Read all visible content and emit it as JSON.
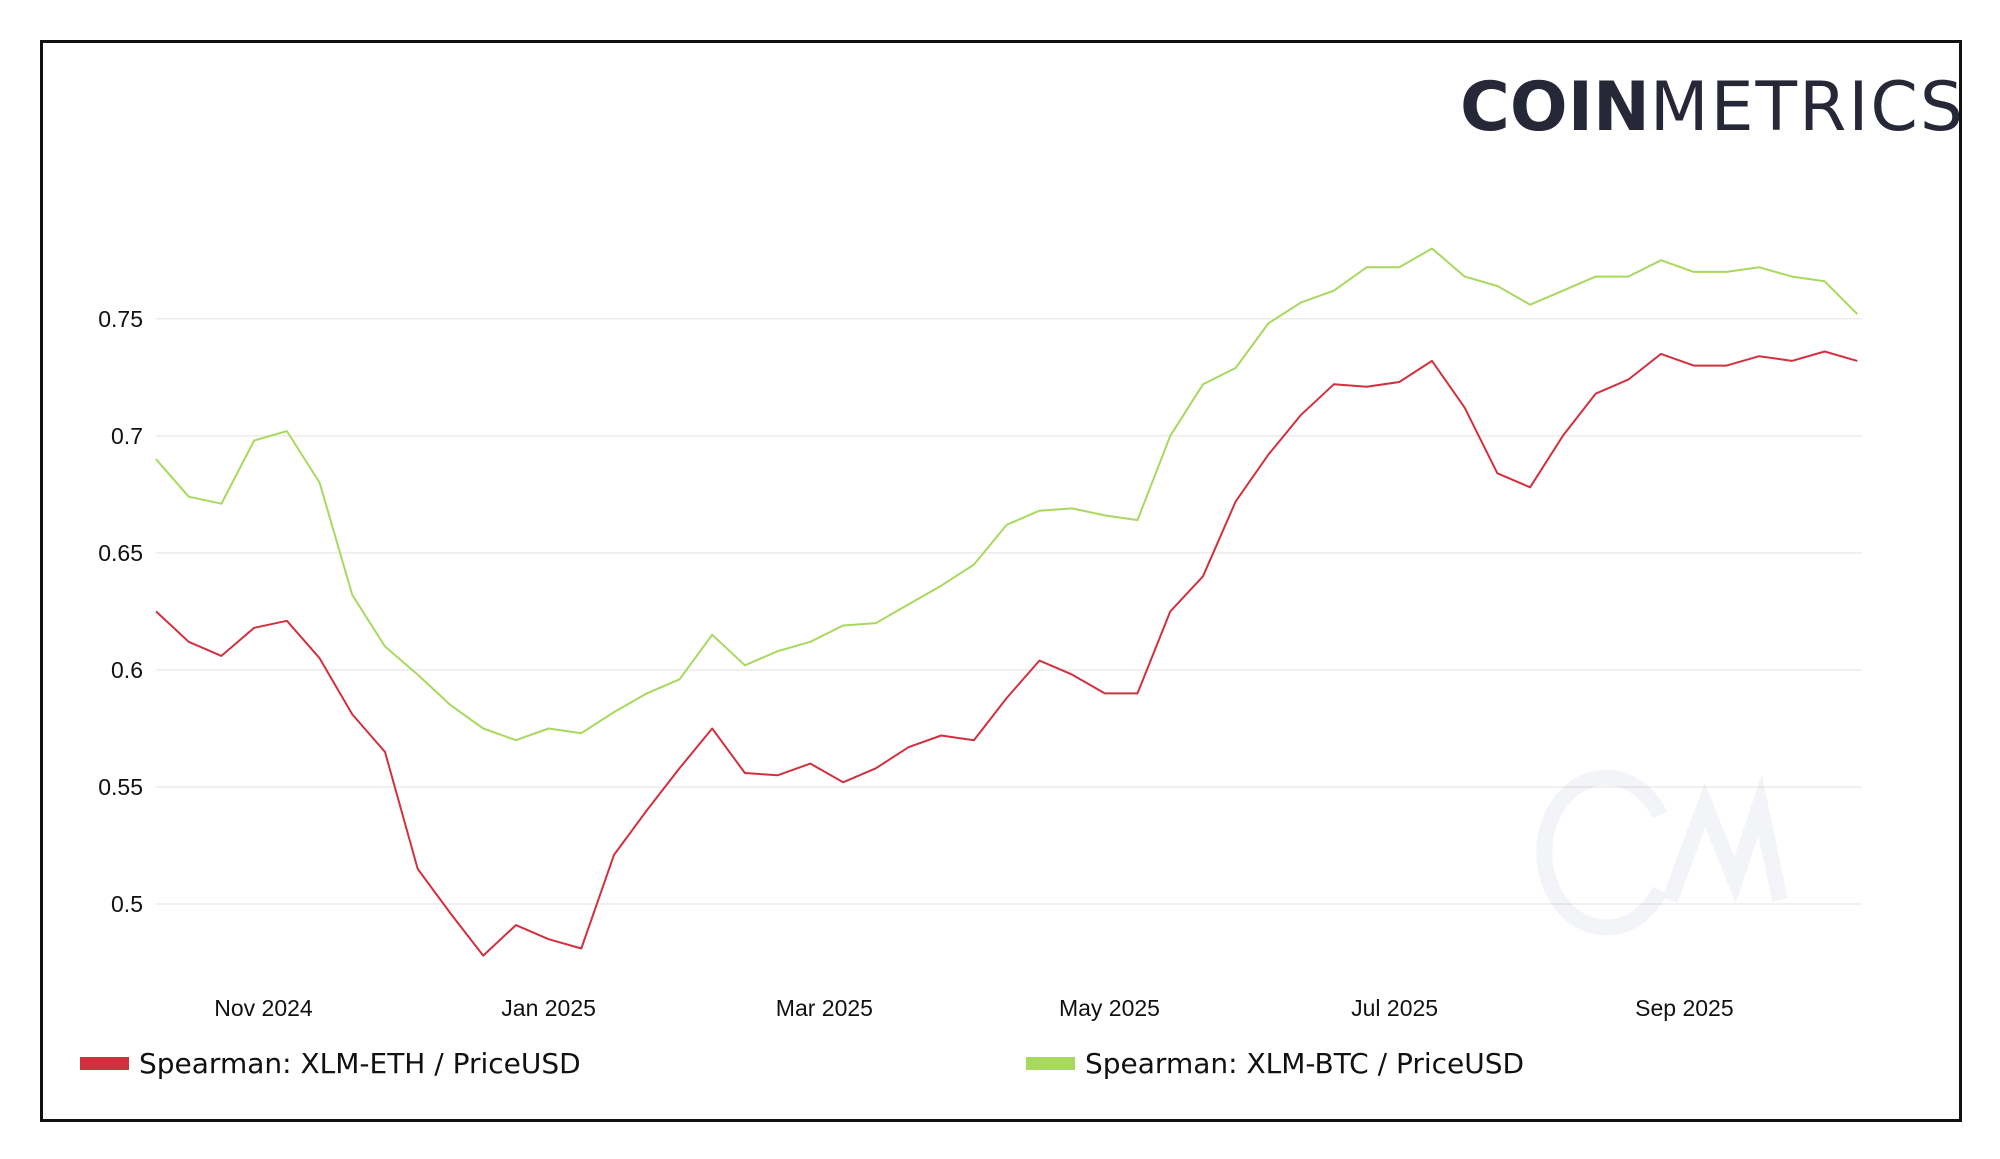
{
  "logo": {
    "bold": "COIN",
    "thin": "METRICS",
    "watermark": "CM"
  },
  "colors": {
    "eth_series": "#d1313f",
    "btc_series": "#a8d95f",
    "grid": "#ececec",
    "logo": "#262838"
  },
  "chart_data": {
    "type": "line",
    "title": "",
    "xlabel": "",
    "ylabel": "",
    "ylim": [
      0.465,
      0.805
    ],
    "xlim": [
      "2024-10-09",
      "2025-10-09"
    ],
    "grid": true,
    "legend_position": "bottom",
    "y_ticks": [
      {
        "value": 0.5,
        "label": "0.5"
      },
      {
        "value": 0.55,
        "label": "0.55"
      },
      {
        "value": 0.6,
        "label": "0.6"
      },
      {
        "value": 0.65,
        "label": "0.65"
      },
      {
        "value": 0.7,
        "label": "0.7"
      },
      {
        "value": 0.75,
        "label": "0.75"
      }
    ],
    "x_ticks": [
      {
        "date": "2024-11-01",
        "label": "Nov 2024"
      },
      {
        "date": "2025-01-01",
        "label": "Jan 2025"
      },
      {
        "date": "2025-03-01",
        "label": "Mar 2025"
      },
      {
        "date": "2025-05-01",
        "label": "May 2025"
      },
      {
        "date": "2025-07-01",
        "label": "Jul 2025"
      },
      {
        "date": "2025-09-01",
        "label": "Sep 2025"
      }
    ],
    "x": [
      "2024-10-09",
      "2024-10-16",
      "2024-10-23",
      "2024-10-30",
      "2024-11-06",
      "2024-11-13",
      "2024-11-20",
      "2024-11-27",
      "2024-12-04",
      "2024-12-11",
      "2024-12-18",
      "2024-12-25",
      "2025-01-01",
      "2025-01-08",
      "2025-01-15",
      "2025-01-22",
      "2025-01-29",
      "2025-02-05",
      "2025-02-12",
      "2025-02-19",
      "2025-02-26",
      "2025-03-05",
      "2025-03-12",
      "2025-03-19",
      "2025-03-26",
      "2025-04-02",
      "2025-04-09",
      "2025-04-16",
      "2025-04-23",
      "2025-04-30",
      "2025-05-07",
      "2025-05-14",
      "2025-05-21",
      "2025-05-28",
      "2025-06-04",
      "2025-06-11",
      "2025-06-18",
      "2025-06-25",
      "2025-07-02",
      "2025-07-09",
      "2025-07-16",
      "2025-07-23",
      "2025-07-30",
      "2025-08-06",
      "2025-08-13",
      "2025-08-20",
      "2025-08-27",
      "2025-09-03",
      "2025-09-10",
      "2025-09-17",
      "2025-09-24",
      "2025-10-01",
      "2025-10-08"
    ],
    "series": [
      {
        "name": "Spearman: XLM-ETH / PriceUSD",
        "color": "#d1313f",
        "values": [
          0.625,
          0.612,
          0.606,
          0.618,
          0.621,
          0.605,
          0.581,
          0.565,
          0.515,
          0.496,
          0.478,
          0.491,
          0.485,
          0.481,
          0.521,
          0.54,
          0.558,
          0.575,
          0.556,
          0.555,
          0.56,
          0.552,
          0.558,
          0.567,
          0.572,
          0.57,
          0.588,
          0.604,
          0.598,
          0.59,
          0.59,
          0.625,
          0.64,
          0.672,
          0.692,
          0.709,
          0.722,
          0.721,
          0.723,
          0.732,
          0.712,
          0.684,
          0.678,
          0.7,
          0.718,
          0.724,
          0.735,
          0.73,
          0.73,
          0.734,
          0.732,
          0.736,
          0.732
        ]
      },
      {
        "name": "Spearman: XLM-BTC / PriceUSD",
        "color": "#a8d95f",
        "values": [
          0.69,
          0.674,
          0.671,
          0.698,
          0.702,
          0.68,
          0.632,
          0.61,
          0.598,
          0.585,
          0.575,
          0.57,
          0.575,
          0.573,
          0.582,
          0.59,
          0.596,
          0.615,
          0.602,
          0.608,
          0.612,
          0.619,
          0.62,
          0.628,
          0.636,
          0.645,
          0.662,
          0.668,
          0.669,
          0.666,
          0.664,
          0.7,
          0.722,
          0.729,
          0.748,
          0.757,
          0.762,
          0.772,
          0.772,
          0.78,
          0.768,
          0.764,
          0.756,
          0.762,
          0.768,
          0.768,
          0.775,
          0.77,
          0.77,
          0.772,
          0.768,
          0.766,
          0.752
        ]
      }
    ]
  }
}
